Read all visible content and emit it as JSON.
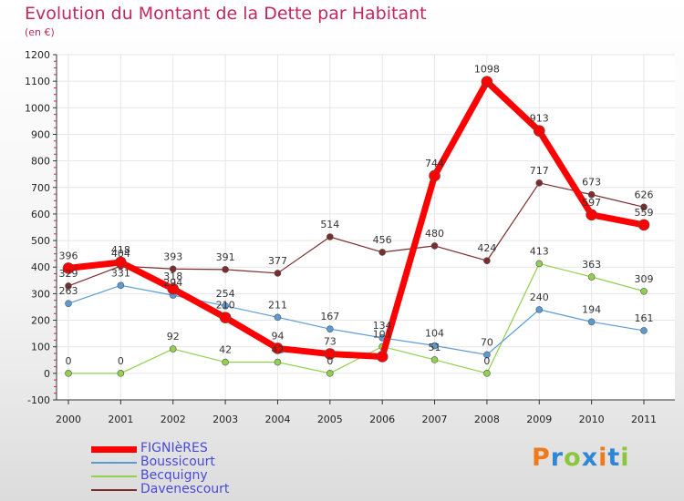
{
  "title": "Evolution du Montant de la Dette par Habitant",
  "subtitle": "(en €)",
  "logo": {
    "text": "Proxiti",
    "letter_colors": [
      "#f07a1a",
      "#2f86d6",
      "#8cc63f",
      "#2f86d6",
      "#f07a1a",
      "#2f86d6",
      "#8cc63f"
    ]
  },
  "chart_data": {
    "type": "line",
    "title": "Evolution du Montant de la Dette par Habitant",
    "subtitle": "(en €)",
    "x": [
      "2000",
      "2001",
      "2002",
      "2003",
      "2004",
      "2005",
      "2006",
      "2007",
      "2008",
      "2009",
      "2010",
      "2011"
    ],
    "ylim": [
      -100,
      1200
    ],
    "yticks": [
      "-100",
      "0",
      "100",
      "200",
      "300",
      "400",
      "500",
      "600",
      "700",
      "800",
      "900",
      "1000",
      "1100",
      "1200"
    ],
    "grid": true,
    "legend_position": "bottom-left",
    "series": [
      {
        "name": "FIGNIèRES",
        "color": "#ff0000",
        "values": [
          396,
          418,
          318,
          210,
          94,
          73,
          63,
          744,
          1098,
          913,
          597,
          559
        ],
        "labels": [
          "396",
          "418",
          "318",
          "210",
          "94",
          "73",
          "",
          "744",
          "1098",
          "913",
          "597",
          "559"
        ]
      },
      {
        "name": "Boussicourt",
        "color": "#5b9bd5",
        "values": [
          263,
          331,
          294,
          254,
          211,
          167,
          134,
          104,
          70,
          240,
          194,
          161
        ],
        "labels": [
          "263",
          "331",
          "294",
          "254",
          "211",
          "167",
          "134",
          "104",
          "70",
          "240",
          "194",
          "161"
        ]
      },
      {
        "name": "Becquigny",
        "color": "#92d050",
        "values": [
          0,
          0,
          92,
          42,
          42,
          0,
          101,
          51,
          0,
          413,
          363,
          309
        ],
        "labels": [
          "0",
          "0",
          "92",
          "42",
          "42",
          "0",
          "101",
          "51",
          "0",
          "413",
          "363",
          "309"
        ]
      },
      {
        "name": "Davenescourt",
        "color": "#7b2c2c",
        "values": [
          329,
          404,
          393,
          391,
          377,
          514,
          456,
          480,
          424,
          717,
          673,
          626
        ],
        "labels": [
          "329",
          "404",
          "393",
          "391",
          "377",
          "514",
          "456",
          "480",
          "424",
          "717",
          "673",
          "626"
        ]
      }
    ]
  }
}
